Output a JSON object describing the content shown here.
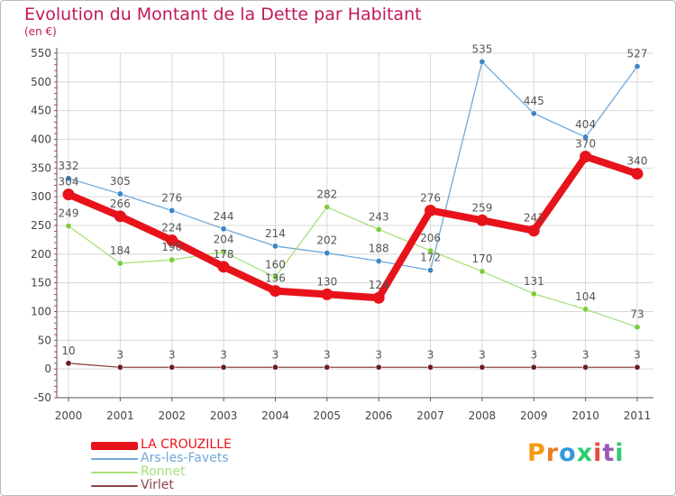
{
  "header": {
    "title": "Evolution du Montant de la Dette par Habitant",
    "subtitle": "(en €)"
  },
  "brand": {
    "text": "Proxiti",
    "colors": [
      "#f39c12",
      "#e67e22",
      "#3498db",
      "#2ecc71",
      "#e74c3c",
      "#9b59b6",
      "#2ecc71"
    ]
  },
  "colors": {
    "title": "#c2185b",
    "axis": "#555555",
    "grid": "#d8d8d8",
    "tick_red": "#cc3366"
  },
  "chart_data": {
    "type": "line",
    "title": "Evolution du Montant de la Dette par Habitant",
    "subtitle": "(en €)",
    "xlabel": "",
    "ylabel": "",
    "x": [
      "2000",
      "2001",
      "2002",
      "2003",
      "2004",
      "2005",
      "2006",
      "2007",
      "2008",
      "2009",
      "2010",
      "2011"
    ],
    "ylim": [
      -50,
      550
    ],
    "yticks": [
      -50,
      0,
      50,
      100,
      150,
      200,
      250,
      300,
      350,
      400,
      450,
      500,
      550
    ],
    "grid": true,
    "legend_position": "bottom-left",
    "series": [
      {
        "name": "LA CROUZILLE",
        "color": "#e8131a",
        "point_color": "#e8131a",
        "label_color": "#555555",
        "highlight": true,
        "values": [
          304,
          266,
          224,
          178,
          136,
          130,
          124,
          276,
          259,
          241,
          370,
          340
        ],
        "labels": [
          "304",
          "266",
          "224",
          "178",
          "136",
          "130",
          "124",
          "276",
          "259",
          "241",
          "370",
          "340"
        ]
      },
      {
        "name": "Ars-les-Favets",
        "color": "#6fa8dc",
        "point_color": "#3d85c6",
        "label_color": "#555555",
        "highlight": false,
        "values": [
          332,
          305,
          276,
          244,
          214,
          202,
          188,
          172,
          535,
          445,
          404,
          527
        ],
        "labels": [
          "332",
          "305",
          "276",
          "244",
          "214",
          "202",
          "188",
          "172",
          "535",
          "445",
          "404",
          "527"
        ]
      },
      {
        "name": "Ronnet",
        "color": "#a8e07a",
        "point_color": "#7ccd3c",
        "label_color": "#555555",
        "highlight": false,
        "values": [
          249,
          184,
          190,
          204,
          160,
          282,
          243,
          206,
          170,
          131,
          104,
          73
        ],
        "labels": [
          "249",
          "184",
          "190",
          "204",
          "160",
          "282",
          "243",
          "206",
          "170",
          "131",
          "104",
          "73"
        ]
      },
      {
        "name": "Virlet",
        "color": "#8b4545",
        "point_color": "#6b1f1f",
        "label_color": "#555555",
        "highlight": false,
        "values": [
          10,
          3,
          3,
          3,
          3,
          3,
          3,
          3,
          3,
          3,
          3,
          3
        ],
        "labels": [
          "10",
          "3",
          "3",
          "3",
          "3",
          "3",
          "3",
          "3",
          "3",
          "3",
          "3",
          "3"
        ]
      }
    ]
  }
}
